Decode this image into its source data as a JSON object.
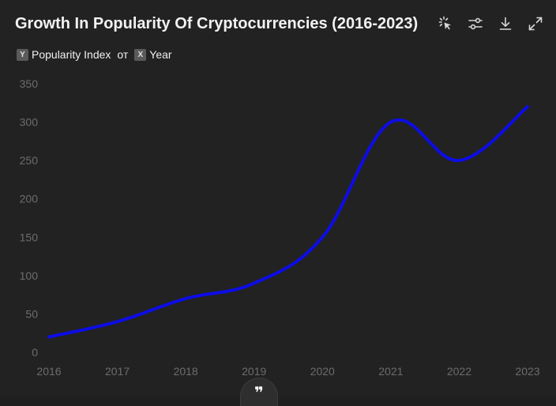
{
  "header": {
    "title": "Growth In Popularity Of Cryptocurrencies (2016-2023)"
  },
  "toolbar": {
    "icons": [
      "sparkle-cursor-icon",
      "sliders-icon",
      "download-icon",
      "expand-icon"
    ]
  },
  "axis_chips": {
    "y_chip": "Y",
    "y_label": "Popularity Index",
    "connector": "от",
    "x_chip": "X",
    "x_label": "Year"
  },
  "quote_button": {
    "glyph": "❞"
  },
  "colors": {
    "background": "#222222",
    "line": "#0d0de6",
    "tick_text": "#6c6c6c"
  },
  "chart_data": {
    "type": "line",
    "title": "Growth In Popularity Of Cryptocurrencies (2016-2023)",
    "xlabel": "Year",
    "ylabel": "Popularity Index",
    "categories": [
      "2016",
      "2017",
      "2018",
      "2019",
      "2020",
      "2021",
      "2022",
      "2023"
    ],
    "series": [
      {
        "values": [
          20,
          40,
          70,
          90,
          150,
          300,
          250,
          320
        ]
      }
    ],
    "ylim": [
      0,
      350
    ],
    "yticks": [
      0,
      50,
      100,
      150,
      200,
      250,
      300,
      350
    ],
    "grid": false,
    "legend": "none"
  }
}
